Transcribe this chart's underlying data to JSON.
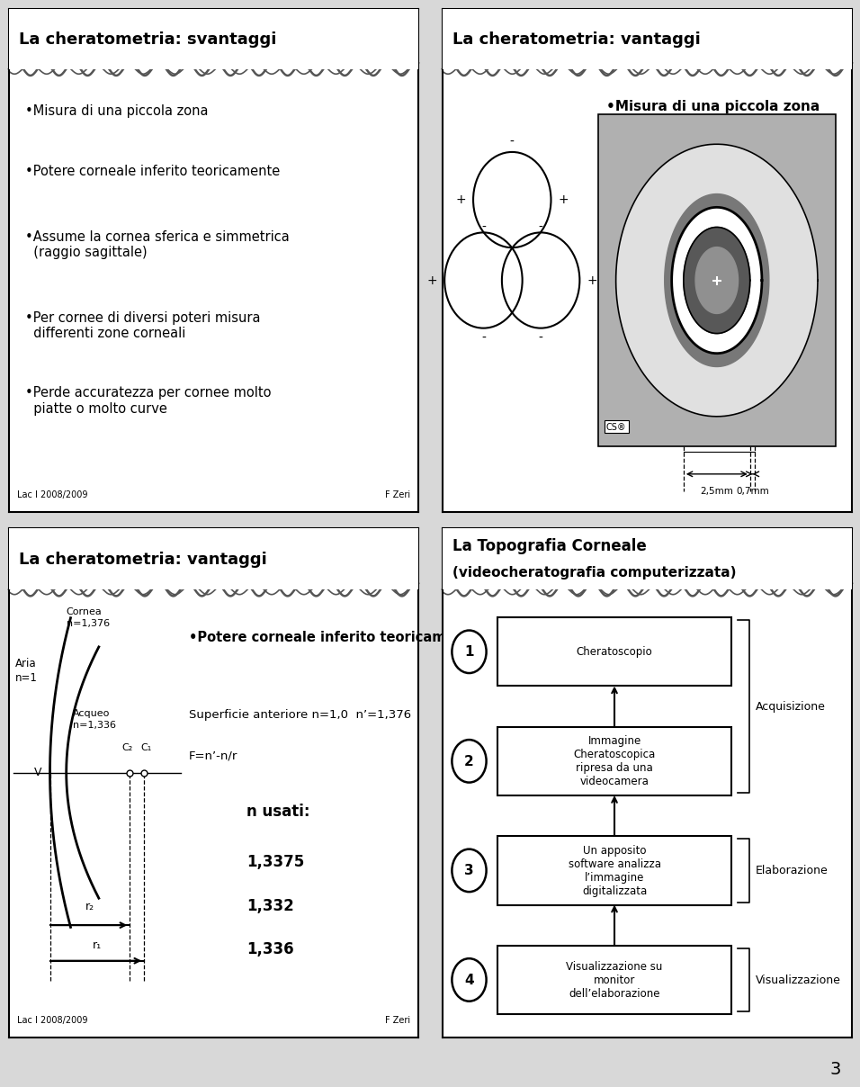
{
  "bg_color": "#d8d8d8",
  "panel_bg": "#ffffff",
  "border_color": "#000000",
  "panel1_title": "La cheratometria: svantaggi",
  "panel1_bullets": [
    "•Misura di una piccola zona",
    "•Potere corneale inferito teoricamente",
    "•Assume la cornea sferica e simmetrica\n  (raggio sagittale)",
    "•Per cornee di diversi poteri misura\n  differenti zone corneali",
    "•Perde accuratezza per cornee molto\n  piatte o molto curve"
  ],
  "panel1_footer_left": "Lac I 2008/2009",
  "panel1_footer_right": "F Zeri",
  "panel2_title": "La cheratometria: vantaggi",
  "panel2_bullet": "•Misura di una piccola zona",
  "panel2_dim1": "2,5mm",
  "panel2_dim2": "0,7mm",
  "panel3_title": "La cheratometria: vantaggi",
  "panel3_label_aria": "Aria\nn=1",
  "panel3_label_cornea": "Cornea\nn=1,376",
  "panel3_label_acqueo": "Acqueo\nn=1,336",
  "panel3_label_c2": "C₂",
  "panel3_label_c1": "C₁",
  "panel3_label_v": "V",
  "panel3_label_r2": "r₂",
  "panel3_label_r1": "r₁",
  "panel3_bullet": "•Potere corneale inferito teoricamente",
  "panel3_superficie": "Superficie anteriore n=1,0  n’=1,376",
  "panel3_formula": "F=n’-n/r",
  "panel3_n_usati": "n usati:",
  "panel3_values": [
    "1,3375",
    "1,332",
    "1,336"
  ],
  "panel3_footer_left": "Lac I 2008/2009",
  "panel3_footer_right": "F Zeri",
  "panel4_title_line1": "La Topografia Corneale",
  "panel4_title_line2": "(videocheratografia computerizzata)",
  "panel4_steps": [
    "Cheratoscopio",
    "Immagine\nCheratoscopica\nripresa da una\nvideocamera",
    "Un apposito\nsoftware analizza\nl’immagine\ndigitalizzata",
    "Visualizzazione su\nmonitor\ndell’elaborazione"
  ],
  "panel4_labels": [
    "1",
    "2",
    "3",
    "4"
  ],
  "panel4_side_labels": [
    "Acquisizione",
    "Elaborazione",
    "Visualizzazione"
  ],
  "page_number": "3"
}
